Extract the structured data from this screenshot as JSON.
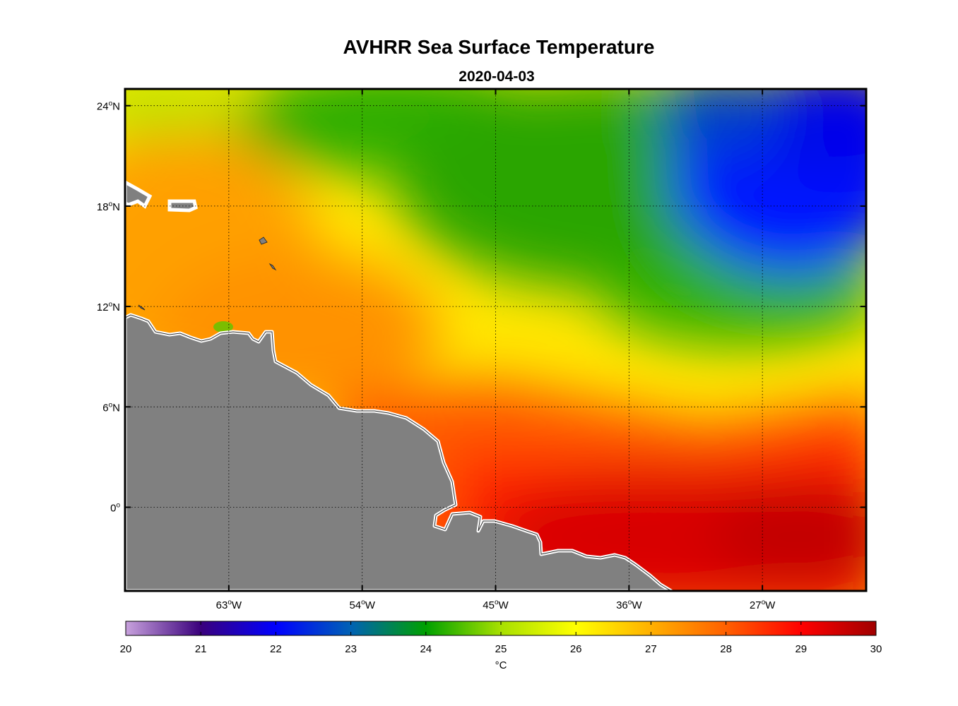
{
  "title": "AVHRR Sea Surface Temperature",
  "subtitle": "2020-04-03",
  "map": {
    "lon_range": [
      -70,
      -20
    ],
    "lat_range": [
      -5,
      25
    ],
    "lon_ticks": [
      {
        "value": -63,
        "num": "63",
        "deg": "o",
        "hem": "W"
      },
      {
        "value": -54,
        "num": "54",
        "deg": "o",
        "hem": "W"
      },
      {
        "value": -45,
        "num": "45",
        "deg": "o",
        "hem": "W"
      },
      {
        "value": -36,
        "num": "36",
        "deg": "o",
        "hem": "W"
      },
      {
        "value": -27,
        "num": "27",
        "deg": "o",
        "hem": "W"
      }
    ],
    "lat_ticks": [
      {
        "value": 24,
        "num": "24",
        "deg": "o",
        "hem": "N"
      },
      {
        "value": 18,
        "num": "18",
        "deg": "o",
        "hem": "N"
      },
      {
        "value": 12,
        "num": "12",
        "deg": "o",
        "hem": "N"
      },
      {
        "value": 6,
        "num": "6",
        "deg": "o",
        "hem": "N"
      },
      {
        "value": 0,
        "num": "0",
        "deg": "o",
        "hem": ""
      }
    ],
    "grid": "dotted",
    "land_color": "#808080",
    "coast_color": "#ffffff"
  },
  "colorbar": {
    "min": 20,
    "max": 30,
    "tick_labels": [
      "20",
      "21",
      "22",
      "23",
      "24",
      "25",
      "26",
      "27",
      "28",
      "29",
      "30"
    ],
    "units": "°C",
    "colors": {
      "20": "#c8a2dd",
      "21": "#3a007c",
      "22": "#0000ff",
      "23": "#0062b4",
      "24": "#00a000",
      "25": "#a8e000",
      "26": "#ffff00",
      "27": "#ffb000",
      "28": "#ff6000",
      "29": "#ff0000",
      "30": "#a00000"
    }
  }
}
